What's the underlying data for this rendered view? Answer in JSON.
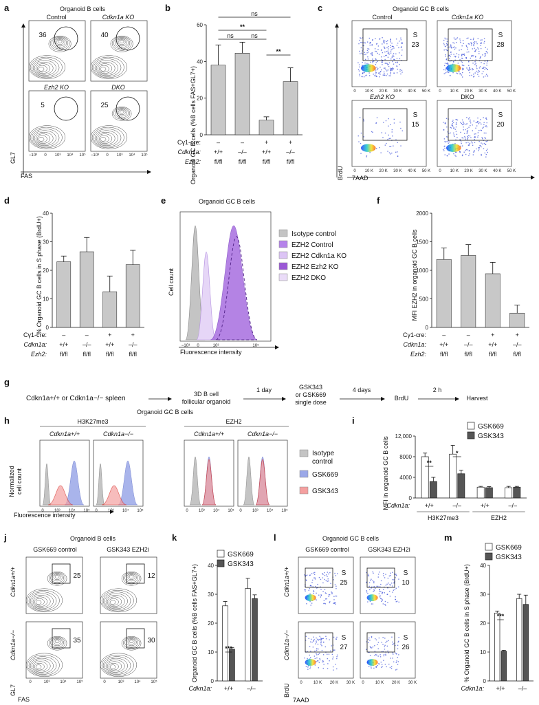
{
  "panels": {
    "a": {
      "letter": "a",
      "title": "Organoid B cells",
      "xlabel": "FAS",
      "ylabel": "GL7",
      "plots": [
        {
          "label": "Control",
          "pct": "36"
        },
        {
          "label": "Cdkn1a KO",
          "pct": "40"
        },
        {
          "label": "Ezh2 KO",
          "pct": "5"
        },
        {
          "label": "DKO",
          "pct": "25"
        }
      ],
      "ticks": [
        "−10³",
        "0",
        "10³",
        "10⁴",
        "10⁵"
      ]
    },
    "b": {
      "letter": "b",
      "ylabel": "Organoid GC B cells (%B cells FAS+GL7+)"
    },
    "c": {
      "letter": "c",
      "title": "Organoid GC B cells",
      "xlabel": "7AAD",
      "ylabel": "BrdU",
      "plots": [
        {
          "label": "Control",
          "s": "S",
          "pct": "23"
        },
        {
          "label": "Cdkn1a KO",
          "s": "S",
          "pct": "28"
        },
        {
          "label": "Ezh2 KO",
          "s": "S",
          "pct": "15"
        },
        {
          "label": "DKO",
          "s": "S",
          "pct": "20"
        }
      ],
      "xticks": [
        "0",
        "10 K",
        "20 K",
        "30 K",
        "40 K",
        "50 K"
      ],
      "yticks": [
        "10⁵",
        "10⁴",
        "10³",
        "0"
      ]
    },
    "d": {
      "letter": "d",
      "ylabel": "% Organoid GC B cells in S phase (BrdU+)"
    },
    "e": {
      "letter": "e",
      "title": "Organoid GC B cells",
      "xlabel": "Fluorescence intensity",
      "ylabel": "Cell count",
      "legend": [
        "Isotype control",
        "EZH2 Control",
        "EZH2 Cdkn1a KO",
        "EZH2 Ezh2 KO",
        "EZH2 DKO"
      ],
      "ticks": [
        "−10³",
        "0",
        "10³",
        "10⁵"
      ]
    },
    "f": {
      "letter": "f",
      "ylabel": "MFI EZH2 in organoid GC B cells"
    },
    "g": {
      "letter": "g",
      "start": "Cdkn1a+/+ or Cdkn1a−/− spleen",
      "step1": "3D B cell",
      "step1b": "follicular organoid",
      "t1": "1 day",
      "drug1": "GSK343",
      "drug2": "or GSK669",
      "drug3": "single dose",
      "t2": "4 days",
      "brdu": "BrdU",
      "t3": "2 h",
      "harvest": "Harvest"
    },
    "h": {
      "letter": "h",
      "title": "Organoid GC B cells",
      "group1": "H3K27me3",
      "group2": "EZH2",
      "sub": [
        "Cdkn1a+/+",
        "Cdkn1a−/−",
        "Cdkn1a+/+",
        "Cdkn1a−/−"
      ],
      "ylabel1": "Normalized",
      "ylabel2": "cell count",
      "xlabel": "Fluorescence intensity",
      "legend": [
        "Isotype control",
        "GSK669",
        "GSK343"
      ],
      "legend_iso1": "Isotype",
      "legend_iso2": "control",
      "ticks": [
        "0",
        "10³",
        "10⁴",
        "10⁵"
      ]
    },
    "i": {
      "letter": "i",
      "ylabel": "MFI in organoid GC B cells",
      "group1": "H3K27me3",
      "group2": "EZH2"
    },
    "j": {
      "letter": "j",
      "title": "Organoid B cells",
      "col1": "GSK669 control",
      "col2": "GSK343 EZH2i",
      "row1": "Cdkn1a+/+",
      "row2": "Cdkn1a−/−",
      "pcts": [
        "25",
        "12",
        "35",
        "30"
      ],
      "xlabel": "FAS",
      "ylabel": "GL7",
      "ticks": [
        "0",
        "10³",
        "10⁴",
        "10⁵"
      ]
    },
    "k": {
      "letter": "k",
      "ylabel": "Organoid GC B cells (%B cells FAS+GL7+)"
    },
    "l": {
      "letter": "l",
      "title": "Organoid GC B cells",
      "col1": "GSK669 control",
      "col2": "GSK343 EZH2i",
      "row1": "Cdkn1a+/+",
      "row2": "Cdkn1a−/−",
      "pcts": [
        "25",
        "10",
        "27",
        "26"
      ],
      "s": "S",
      "xlabel": "7AAD",
      "ylabel": "BrdU",
      "xticks": [
        "0",
        "10 K",
        "20 K",
        "30 K"
      ]
    },
    "m": {
      "letter": "m",
      "ylabel": "% Organoid GC B cells in S phase (BrdU+)"
    }
  },
  "colors": {
    "gray_bar": "#c8c8c8",
    "gsk669": "#ffffff",
    "gsk343": "#555555",
    "iso": "#c4c4c4",
    "purple": "#a86ee0",
    "blue": "#9ba8e8",
    "red": "#f4a0a0",
    "redline": "#d8342e"
  },
  "chart_data": [
    {
      "id": "b",
      "type": "bar",
      "title": "",
      "ylabel": "Organoid GC B cells (%B cells FAS+GL7+)",
      "ylim": [
        0,
        60
      ],
      "yticks": [
        "0",
        "20",
        "40",
        "60"
      ],
      "categories": [
        "1",
        "2",
        "3",
        "4"
      ],
      "values": [
        38,
        44.5,
        8,
        29
      ],
      "errors": [
        11,
        6,
        1.8,
        7.5
      ],
      "rows": [
        {
          "label": "Cγ1-cre:",
          "values": [
            "–",
            "–",
            "+",
            "+"
          ]
        },
        {
          "label": "Cdkn1a:",
          "values": [
            "+/+",
            "–/–",
            "+/+",
            "–/–"
          ]
        },
        {
          "label": "Ezh2:",
          "values": [
            "fl/fl",
            "fl/fl",
            "fl/fl",
            "fl/fl"
          ]
        }
      ],
      "significance": [
        "ns",
        "**",
        "ns",
        "ns",
        "**"
      ]
    },
    {
      "id": "d",
      "type": "bar",
      "title": "",
      "ylabel": "% Organoid GC B cells in S phase (BrdU+)",
      "ylim": [
        0,
        40
      ],
      "yticks": [
        "0",
        "10",
        "20",
        "30",
        "40"
      ],
      "categories": [
        "1",
        "2",
        "3",
        "4"
      ],
      "values": [
        23,
        26.5,
        12.5,
        22
      ],
      "errors": [
        2,
        5,
        5.5,
        5
      ],
      "rows": [
        {
          "label": "Cγ1-cre:",
          "values": [
            "–",
            "–",
            "+",
            "+"
          ]
        },
        {
          "label": "Cdkn1a:",
          "values": [
            "+/+",
            "–/–",
            "+/+",
            "–/–"
          ]
        },
        {
          "label": "Ezh2:",
          "values": [
            "fl/fl",
            "fl/fl",
            "fl/fl",
            "fl/fl"
          ]
        }
      ]
    },
    {
      "id": "f",
      "type": "bar",
      "title": "",
      "ylabel": "MFI EZH2 in organoid GC B cells",
      "ylim": [
        0,
        2000
      ],
      "yticks": [
        "0",
        "500",
        "1000",
        "1500",
        "2000"
      ],
      "categories": [
        "1",
        "2",
        "3",
        "4"
      ],
      "values": [
        1190,
        1260,
        940,
        250
      ],
      "errors": [
        200,
        190,
        200,
        140
      ],
      "rows": [
        {
          "label": "Cγ1-cre:",
          "values": [
            "–",
            "–",
            "+",
            "+"
          ]
        },
        {
          "label": "Cdkn1a:",
          "values": [
            "+/+",
            "–/–",
            "+/+",
            "–/–"
          ]
        },
        {
          "label": "Ezh2:",
          "values": [
            "fl/fl",
            "fl/fl",
            "fl/fl",
            "fl/fl"
          ]
        }
      ]
    },
    {
      "id": "i",
      "type": "bar",
      "title": "",
      "ylabel": "MFI in organoid GC B cells",
      "ylim": [
        0,
        12000
      ],
      "yticks": [
        "0",
        "4000",
        "8000",
        "12,000"
      ],
      "categories": [
        "+/+",
        "–/–",
        "+/+",
        "–/–"
      ],
      "xrow_label": "Cdkn1a:",
      "series": [
        {
          "name": "GSK669",
          "values": [
            8000,
            8500,
            2100,
            2000
          ],
          "errors": [
            700,
            1700,
            150,
            250
          ]
        },
        {
          "name": "GSK343",
          "values": [
            3200,
            4700,
            2000,
            2100
          ],
          "errors": [
            800,
            700,
            200,
            150
          ]
        }
      ],
      "groups": [
        "H3K27me3",
        "EZH2"
      ],
      "significance": [
        "**",
        "*"
      ]
    },
    {
      "id": "k",
      "type": "bar",
      "title": "",
      "ylabel": "Organoid GC B cells (%B cells FAS+GL7+)",
      "ylim": [
        0,
        40
      ],
      "yticks": [
        "0",
        "10",
        "20",
        "30",
        "40"
      ],
      "categories": [
        "+/+",
        "–/–"
      ],
      "xrow_label": "Cdkn1a:",
      "series": [
        {
          "name": "GSK669",
          "values": [
            26,
            32
          ],
          "errors": [
            1.5,
            3.5
          ]
        },
        {
          "name": "GSK343",
          "values": [
            11,
            28.5
          ],
          "errors": [
            0.6,
            1.3
          ]
        }
      ],
      "significance": [
        "***"
      ]
    },
    {
      "id": "m",
      "type": "bar",
      "title": "",
      "ylabel": "% Organoid GC B cells in S phase (BrdU+)",
      "ylim": [
        0,
        40
      ],
      "yticks": [
        "0",
        "10",
        "20",
        "30",
        "40"
      ],
      "categories": [
        "+/+",
        "–/–"
      ],
      "xrow_label": "Cdkn1a:",
      "series": [
        {
          "name": "GSK669",
          "values": [
            23.5,
            28.5
          ],
          "errors": [
            0.7,
            1.5
          ]
        },
        {
          "name": "GSK343",
          "values": [
            10.3,
            26.5
          ],
          "errors": [
            0.3,
            3.2
          ]
        }
      ],
      "significance": [
        "***"
      ]
    }
  ]
}
